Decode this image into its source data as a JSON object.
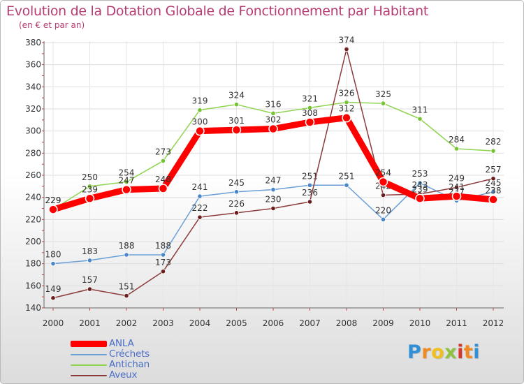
{
  "chart_data": {
    "type": "line",
    "title": "Evolution de la Dotation Globale de Fonctionnement par Habitant",
    "subtitle": "(en € et par an)",
    "xlabel": "",
    "ylabel": "",
    "x": [
      "2000",
      "2001",
      "2002",
      "2003",
      "2004",
      "2005",
      "2006",
      "2007",
      "2008",
      "2009",
      "2010",
      "2011",
      "2012"
    ],
    "ylim": [
      140,
      380
    ],
    "yticks": [
      140,
      160,
      180,
      200,
      220,
      240,
      260,
      280,
      300,
      320,
      340,
      360,
      380
    ],
    "grid": true,
    "legend_position": "bottom-left",
    "series": [
      {
        "name": "Antichan",
        "color": "#8fd44f",
        "marker": "#76c334",
        "values": [
          229,
          250,
          254,
          273,
          319,
          324,
          316,
          321,
          326,
          325,
          311,
          284,
          282
        ]
      },
      {
        "name": "Créchets",
        "color": "#6a9fd6",
        "marker": "#4b86c8",
        "values": [
          180,
          183,
          188,
          188,
          241,
          245,
          247,
          251,
          251,
          220,
          253,
          237,
          245
        ]
      },
      {
        "name": "Aveux",
        "color": "#8c3b3b",
        "marker": "#6b1e1e",
        "values": [
          149,
          157,
          151,
          173,
          222,
          226,
          230,
          236,
          374,
          242,
          243,
          249,
          257
        ]
      },
      {
        "name": "ANLA",
        "color": "#ff0000",
        "marker": "#ff0000",
        "bold": true,
        "values": [
          229,
          239,
          247,
          248,
          300,
          301,
          302,
          308,
          312,
          254,
          239,
          241,
          238
        ]
      }
    ]
  },
  "legend_order": [
    "ANLA",
    "Créchets",
    "Antichan",
    "Aveux"
  ],
  "brand": {
    "letters": [
      "P",
      "r",
      "o",
      "x",
      "i",
      "t",
      "i"
    ],
    "colors": [
      "#2f8fd8",
      "#f08a22",
      "#f0c020",
      "#8fc23e",
      "#d9352b",
      "#f08a22",
      "#2f8fd8"
    ]
  }
}
